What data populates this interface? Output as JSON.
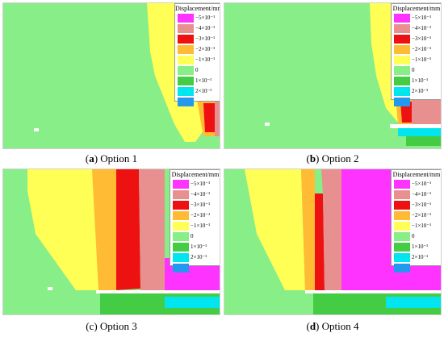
{
  "legend": {
    "title": "Displacement/mm",
    "entries": [
      {
        "label": "−5×10⁻¹",
        "color": "#ff33ff"
      },
      {
        "label": "−4×10⁻¹",
        "color": "#e89090"
      },
      {
        "label": "−3×10⁻¹",
        "color": "#ee1111"
      },
      {
        "label": "−2×10⁻¹",
        "color": "#ffbb33"
      },
      {
        "label": "−1×10⁻¹",
        "color": "#ffff55"
      },
      {
        "label": "0",
        "color": "#88ee88"
      },
      {
        "label": "1×10⁻¹",
        "color": "#44cc44"
      },
      {
        "label": "2×10⁻¹",
        "color": "#00e5ee"
      },
      {
        "label": "",
        "color": "#2299ee"
      }
    ]
  },
  "panels": [
    {
      "letter": "a",
      "caption": " Option 1"
    },
    {
      "letter": "b",
      "caption": " Option 2"
    },
    {
      "letter": "c",
      "caption": " Option 3"
    },
    {
      "letter": "d",
      "caption": " Option 4"
    }
  ]
}
